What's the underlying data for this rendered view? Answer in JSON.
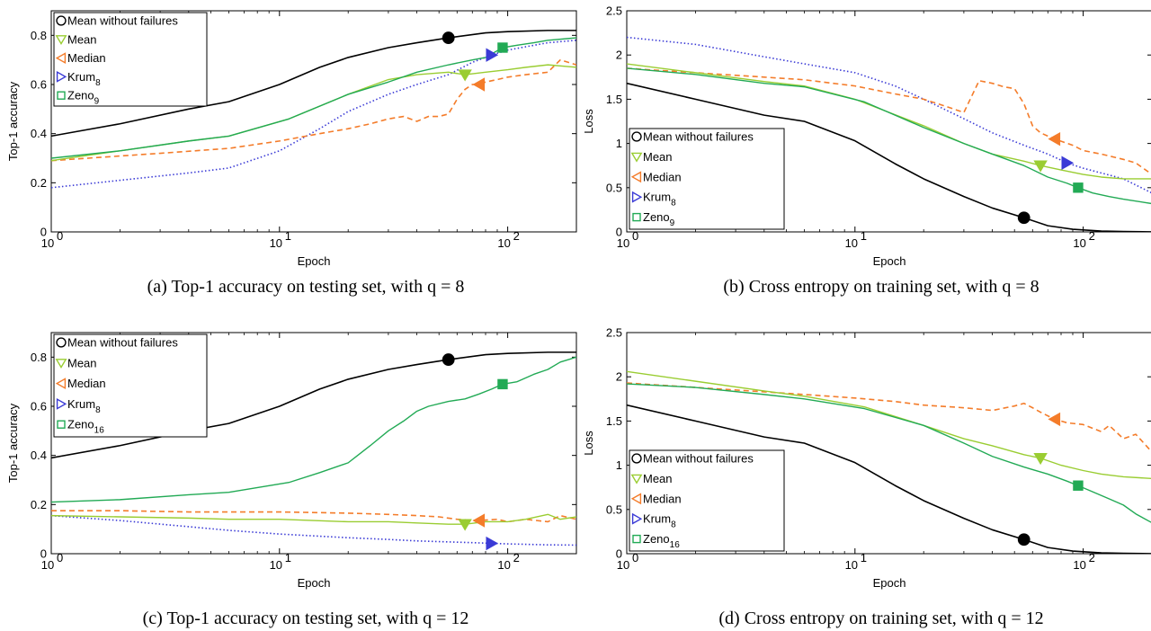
{
  "captions": [
    "(a)  Top-1 accuracy on testing set, with q = 8",
    "(b)  Cross entropy on training set, with q = 8",
    "(c)  Top-1 accuracy on testing set, with q = 12",
    "(d)  Cross entropy on training set, with q = 12"
  ],
  "colors": {
    "mean_without_failures": "#000000",
    "mean": "#9acd32",
    "median": "#f47c2a",
    "krum": "#3b3bd6",
    "zeno": "#22aa55"
  },
  "chart_data": [
    {
      "type": "line",
      "xscale": "log",
      "xlim": [
        1,
        200
      ],
      "ylim": [
        0,
        0.9
      ],
      "xlabel": "Epoch",
      "ylabel": "Top-1 accuracy",
      "yticks": [
        "0",
        "0.2",
        "0.4",
        "0.6",
        "0.8"
      ],
      "ytick_values": [
        0,
        0.2,
        0.4,
        0.6,
        0.8
      ],
      "legend": "top-left",
      "series": [
        {
          "key": "mean_without_failures",
          "name": "Mean without failures",
          "marker": "circle",
          "marker_x": 55,
          "x": [
            1,
            2,
            4,
            6,
            10,
            15,
            20,
            30,
            40,
            55,
            80,
            100,
            150,
            200
          ],
          "y": [
            0.39,
            0.44,
            0.5,
            0.53,
            0.6,
            0.67,
            0.71,
            0.75,
            0.77,
            0.79,
            0.81,
            0.815,
            0.82,
            0.82
          ]
        },
        {
          "key": "mean",
          "name": "Mean",
          "marker": "triangle-down",
          "marker_x": 65,
          "x": [
            1,
            2,
            4,
            6,
            11,
            20,
            30,
            40,
            55,
            65,
            80,
            100,
            120,
            150,
            200
          ],
          "y": [
            0.29,
            0.33,
            0.37,
            0.39,
            0.46,
            0.56,
            0.62,
            0.64,
            0.65,
            0.64,
            0.65,
            0.66,
            0.67,
            0.68,
            0.67
          ]
        },
        {
          "key": "median",
          "name": "Median",
          "marker": "triangle-left",
          "marker_x": 75,
          "x": [
            1,
            3,
            6,
            10,
            15,
            20,
            25,
            30,
            35,
            40,
            45,
            50,
            55,
            60,
            65,
            70,
            75,
            80,
            90,
            100,
            120,
            150,
            170,
            200
          ],
          "y": [
            0.29,
            0.32,
            0.34,
            0.37,
            0.4,
            0.42,
            0.44,
            0.46,
            0.47,
            0.45,
            0.47,
            0.47,
            0.48,
            0.54,
            0.58,
            0.6,
            0.6,
            0.61,
            0.62,
            0.63,
            0.64,
            0.65,
            0.7,
            0.68
          ]
        },
        {
          "key": "krum",
          "name": "Krum_8",
          "sub": "8",
          "marker": "triangle-right",
          "marker_x": 85,
          "x": [
            1,
            2,
            4,
            6,
            10,
            15,
            20,
            30,
            40,
            55,
            70,
            85,
            100,
            150,
            200
          ],
          "y": [
            0.18,
            0.21,
            0.24,
            0.26,
            0.33,
            0.42,
            0.49,
            0.56,
            0.6,
            0.64,
            0.69,
            0.72,
            0.74,
            0.77,
            0.78
          ]
        },
        {
          "key": "zeno",
          "name": "Zeno_9",
          "sub": "9",
          "marker": "square",
          "marker_x": 95,
          "x": [
            1,
            2,
            4,
            6,
            11,
            20,
            30,
            40,
            55,
            70,
            80,
            95,
            110,
            130,
            150,
            200
          ],
          "y": [
            0.3,
            0.33,
            0.37,
            0.39,
            0.46,
            0.56,
            0.61,
            0.65,
            0.68,
            0.7,
            0.71,
            0.75,
            0.76,
            0.77,
            0.78,
            0.79
          ]
        }
      ]
    },
    {
      "type": "line",
      "xscale": "log",
      "xlim": [
        1,
        200
      ],
      "ylim": [
        0,
        2.5
      ],
      "xlabel": "Epoch",
      "ylabel": "Loss",
      "yticks": [
        "0",
        "0.5",
        "1",
        "1.5",
        "2",
        "2.5"
      ],
      "ytick_values": [
        0,
        0.5,
        1,
        1.5,
        2,
        2.5
      ],
      "legend": "bottom-left",
      "series": [
        {
          "key": "mean_without_failures",
          "name": "Mean without failures",
          "marker": "circle",
          "marker_x": 55,
          "x": [
            1,
            2,
            4,
            6,
            10,
            15,
            20,
            30,
            40,
            55,
            70,
            90,
            120,
            150,
            200
          ],
          "y": [
            1.68,
            1.5,
            1.32,
            1.25,
            1.03,
            0.77,
            0.6,
            0.4,
            0.27,
            0.16,
            0.07,
            0.03,
            0.01,
            0.005,
            0.0
          ]
        },
        {
          "key": "mean",
          "name": "Mean",
          "marker": "triangle-down",
          "marker_x": 65,
          "x": [
            1,
            2,
            4,
            6,
            10,
            20,
            30,
            40,
            55,
            65,
            80,
            100,
            120,
            150,
            200
          ],
          "y": [
            1.9,
            1.8,
            1.7,
            1.65,
            1.5,
            1.2,
            1.0,
            0.88,
            0.8,
            0.75,
            0.7,
            0.65,
            0.62,
            0.6,
            0.6
          ]
        },
        {
          "key": "median",
          "name": "Median",
          "marker": "triangle-left",
          "marker_x": 75,
          "x": [
            1,
            2,
            4,
            6,
            10,
            15,
            20,
            25,
            30,
            35,
            40,
            45,
            50,
            55,
            60,
            65,
            75,
            90,
            100,
            120,
            150,
            170,
            200
          ],
          "y": [
            1.85,
            1.8,
            1.75,
            1.72,
            1.65,
            1.56,
            1.5,
            1.42,
            1.35,
            1.71,
            1.68,
            1.64,
            1.62,
            1.45,
            1.2,
            1.12,
            1.05,
            0.98,
            0.92,
            0.88,
            0.82,
            0.78,
            0.65
          ]
        },
        {
          "key": "krum",
          "name": "Krum_8",
          "sub": "8",
          "marker": "triangle-right",
          "marker_x": 85,
          "x": [
            1,
            2,
            4,
            6,
            10,
            15,
            20,
            30,
            40,
            55,
            70,
            85,
            100,
            150,
            200
          ],
          "y": [
            2.2,
            2.12,
            1.98,
            1.9,
            1.8,
            1.65,
            1.5,
            1.28,
            1.12,
            0.98,
            0.88,
            0.78,
            0.72,
            0.6,
            0.44
          ]
        },
        {
          "key": "zeno",
          "name": "Zeno_9",
          "sub": "9",
          "marker": "square",
          "marker_x": 95,
          "x": [
            1,
            2,
            4,
            6,
            11,
            20,
            30,
            40,
            55,
            70,
            85,
            95,
            110,
            130,
            150,
            200
          ],
          "y": [
            1.85,
            1.78,
            1.68,
            1.64,
            1.47,
            1.18,
            1.0,
            0.88,
            0.75,
            0.62,
            0.55,
            0.5,
            0.44,
            0.4,
            0.37,
            0.32
          ]
        }
      ]
    },
    {
      "type": "line",
      "xscale": "log",
      "xlim": [
        1,
        200
      ],
      "ylim": [
        0,
        0.9
      ],
      "xlabel": "Epoch",
      "ylabel": "Top-1 accuracy",
      "yticks": [
        "0",
        "0.2",
        "0.4",
        "0.6",
        "0.8"
      ],
      "ytick_values": [
        0,
        0.2,
        0.4,
        0.6,
        0.8
      ],
      "legend": "top-left",
      "series": [
        {
          "key": "mean_without_failures",
          "name": "Mean without failures",
          "marker": "circle",
          "marker_x": 55,
          "x": [
            1,
            2,
            4,
            6,
            10,
            15,
            20,
            30,
            40,
            55,
            80,
            100,
            150,
            200
          ],
          "y": [
            0.39,
            0.44,
            0.5,
            0.53,
            0.6,
            0.67,
            0.71,
            0.75,
            0.77,
            0.79,
            0.81,
            0.815,
            0.82,
            0.82
          ]
        },
        {
          "key": "mean",
          "name": "Mean",
          "marker": "triangle-down",
          "marker_x": 65,
          "x": [
            1,
            2,
            4,
            6,
            10,
            20,
            30,
            40,
            55,
            65,
            80,
            100,
            120,
            150,
            170,
            200
          ],
          "y": [
            0.155,
            0.15,
            0.145,
            0.14,
            0.14,
            0.13,
            0.13,
            0.125,
            0.12,
            0.12,
            0.13,
            0.13,
            0.14,
            0.16,
            0.14,
            0.15
          ]
        },
        {
          "key": "median",
          "name": "Median",
          "marker": "triangle-left",
          "marker_x": 75,
          "x": [
            1,
            2,
            4,
            6,
            10,
            20,
            30,
            40,
            50,
            60,
            75,
            90,
            100,
            120,
            150,
            170,
            200
          ],
          "y": [
            0.175,
            0.175,
            0.17,
            0.17,
            0.17,
            0.165,
            0.16,
            0.155,
            0.15,
            0.14,
            0.135,
            0.14,
            0.13,
            0.14,
            0.13,
            0.155,
            0.14
          ]
        },
        {
          "key": "krum",
          "name": "Krum_8",
          "sub": "8",
          "marker": "triangle-right",
          "marker_x": 85,
          "x": [
            1,
            2,
            4,
            6,
            10,
            20,
            30,
            40,
            55,
            70,
            85,
            100,
            150,
            200
          ],
          "y": [
            0.155,
            0.135,
            0.11,
            0.095,
            0.08,
            0.065,
            0.058,
            0.052,
            0.048,
            0.045,
            0.042,
            0.04,
            0.036,
            0.035
          ]
        },
        {
          "key": "zeno",
          "name": "Zeno_16",
          "sub": "16",
          "marker": "square",
          "marker_x": 95,
          "x": [
            1,
            2,
            4,
            6,
            11,
            15,
            20,
            25,
            30,
            35,
            40,
            45,
            55,
            65,
            75,
            85,
            95,
            110,
            130,
            150,
            170,
            200
          ],
          "y": [
            0.21,
            0.22,
            0.24,
            0.25,
            0.29,
            0.33,
            0.37,
            0.44,
            0.5,
            0.54,
            0.58,
            0.6,
            0.62,
            0.63,
            0.65,
            0.67,
            0.69,
            0.7,
            0.73,
            0.75,
            0.78,
            0.8
          ]
        }
      ]
    },
    {
      "type": "line",
      "xscale": "log",
      "xlim": [
        1,
        200
      ],
      "ylim": [
        0,
        2.5
      ],
      "xlabel": "Epoch",
      "ylabel": "Loss",
      "yticks": [
        "0",
        "0.5",
        "1",
        "1.5",
        "2",
        "2.5"
      ],
      "ytick_values": [
        0,
        0.5,
        1,
        1.5,
        2,
        2.5
      ],
      "legend": "bottom-left",
      "series": [
        {
          "key": "mean_without_failures",
          "name": "Mean without failures",
          "marker": "circle",
          "marker_x": 55,
          "x": [
            1,
            2,
            4,
            6,
            10,
            15,
            20,
            30,
            40,
            55,
            70,
            90,
            120,
            150,
            200
          ],
          "y": [
            1.68,
            1.5,
            1.32,
            1.25,
            1.03,
            0.77,
            0.6,
            0.4,
            0.27,
            0.16,
            0.07,
            0.03,
            0.01,
            0.005,
            0.0
          ]
        },
        {
          "key": "mean",
          "name": "Mean",
          "marker": "triangle-down",
          "marker_x": 65,
          "x": [
            1,
            2,
            4,
            6,
            11,
            20,
            30,
            40,
            55,
            65,
            80,
            100,
            120,
            150,
            200
          ],
          "y": [
            2.06,
            1.95,
            1.84,
            1.78,
            1.66,
            1.45,
            1.3,
            1.22,
            1.12,
            1.08,
            1.0,
            0.94,
            0.9,
            0.87,
            0.85
          ]
        },
        {
          "key": "median",
          "name": "Median",
          "marker": "triangle-left",
          "marker_x": 75,
          "x": [
            1,
            2,
            4,
            6,
            10,
            15,
            20,
            30,
            40,
            50,
            55,
            60,
            65,
            75,
            85,
            100,
            120,
            130,
            150,
            170,
            200
          ],
          "y": [
            1.93,
            1.88,
            1.83,
            1.8,
            1.76,
            1.72,
            1.68,
            1.65,
            1.62,
            1.67,
            1.7,
            1.65,
            1.6,
            1.52,
            1.48,
            1.46,
            1.38,
            1.45,
            1.3,
            1.35,
            1.15
          ]
        },
        {
          "key": "krum",
          "name": "Krum_8",
          "sub": "8",
          "marker": "triangle-right",
          "marker_x": null,
          "x": [],
          "y": []
        },
        {
          "key": "zeno",
          "name": "Zeno_16",
          "sub": "16",
          "marker": "square",
          "marker_x": 95,
          "x": [
            1,
            2,
            4,
            6,
            11,
            20,
            30,
            40,
            55,
            70,
            85,
            95,
            110,
            130,
            150,
            170,
            200
          ],
          "y": [
            1.92,
            1.88,
            1.8,
            1.75,
            1.64,
            1.45,
            1.25,
            1.1,
            0.98,
            0.9,
            0.82,
            0.77,
            0.7,
            0.62,
            0.55,
            0.45,
            0.35
          ]
        }
      ]
    }
  ]
}
